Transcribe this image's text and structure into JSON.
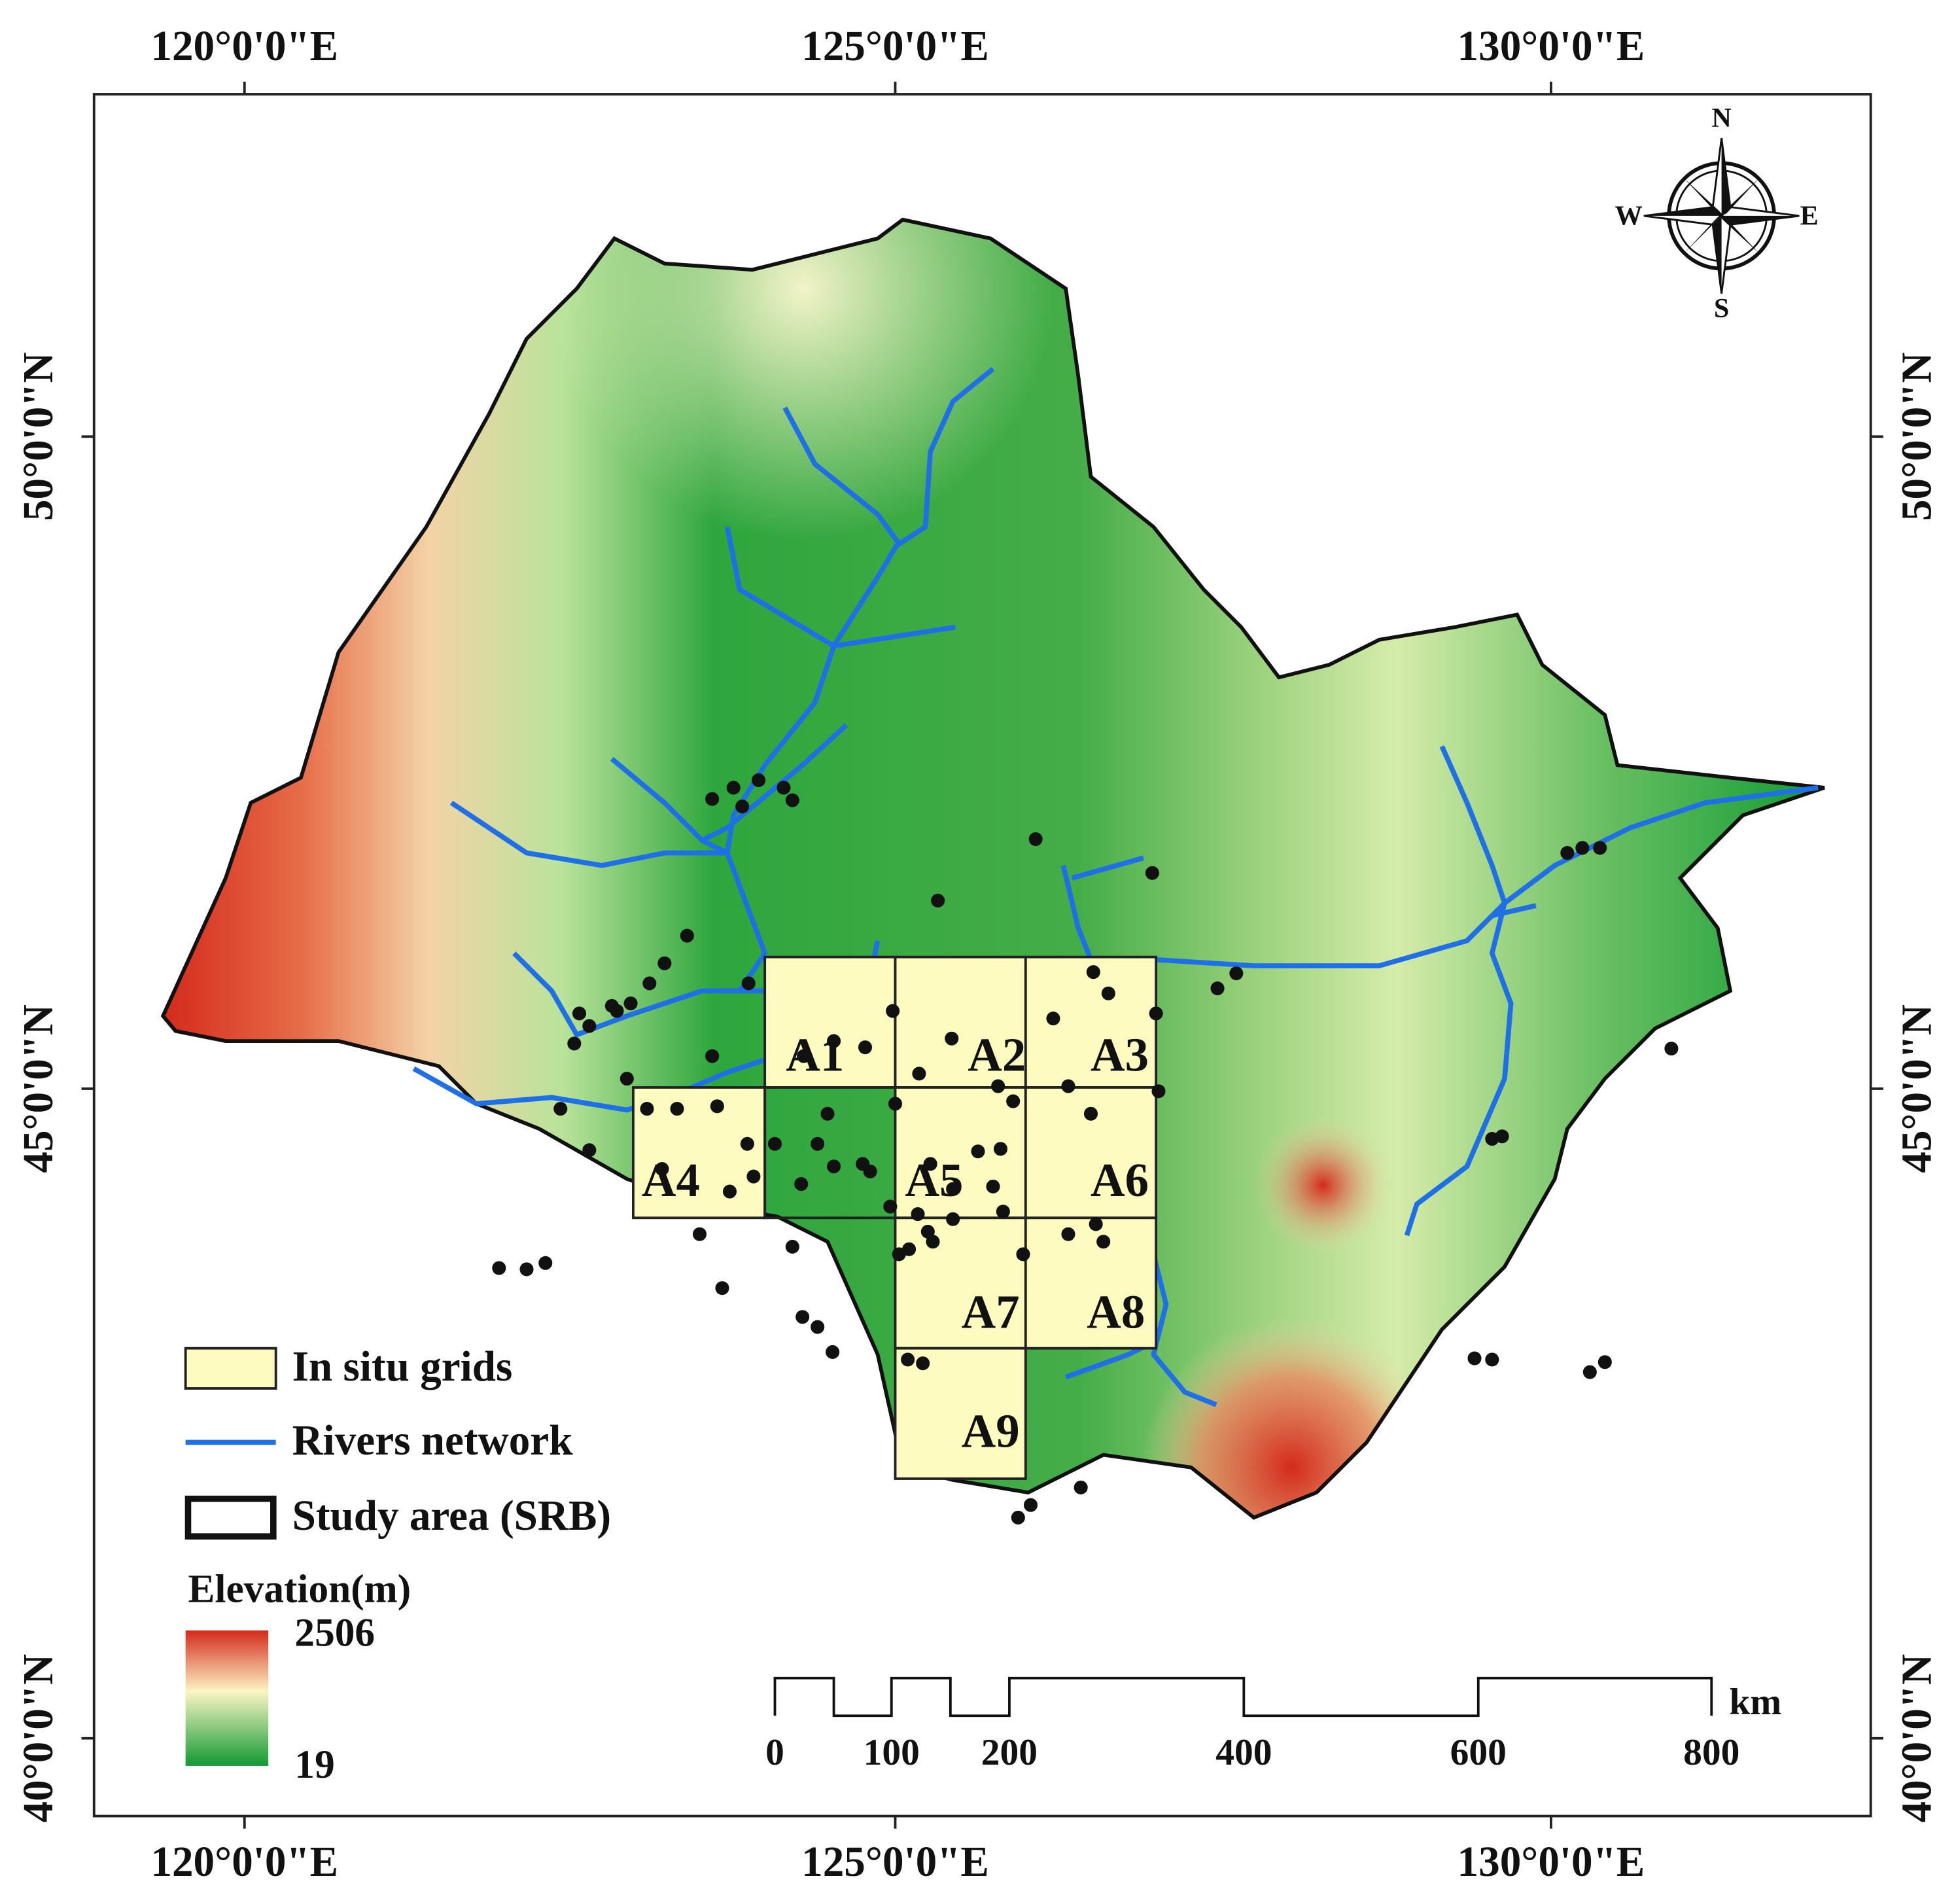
{
  "axes": {
    "top": [
      "120°0'0\"E",
      "125°0'0\"E",
      "130°0'0\"E"
    ],
    "bottom": [
      "120°0'0\"E",
      "125°0'0\"E",
      "130°0'0\"E"
    ],
    "left": [
      "50°0'0\"N",
      "45°0'0\"N",
      "40°0'0\"N"
    ],
    "right": [
      "50°0'0\"N",
      "45°0'0\"N",
      "40°0'0\"N"
    ]
  },
  "compass": {
    "n": "N",
    "e": "E",
    "s": "S",
    "w": "W"
  },
  "grids": [
    "A1",
    "A2",
    "A3",
    "A4",
    "A5",
    "A6",
    "A7",
    "A8",
    "A9"
  ],
  "legend": {
    "items": [
      "In situ grids",
      "Rivers network",
      "Study area (SRB)"
    ],
    "elevation": {
      "title": "Elevation(m)",
      "max": "2506",
      "min": "19"
    }
  },
  "scale_bar": {
    "labels": [
      "0",
      "100",
      "200",
      "400",
      "600",
      "800"
    ],
    "unit": "km"
  }
}
